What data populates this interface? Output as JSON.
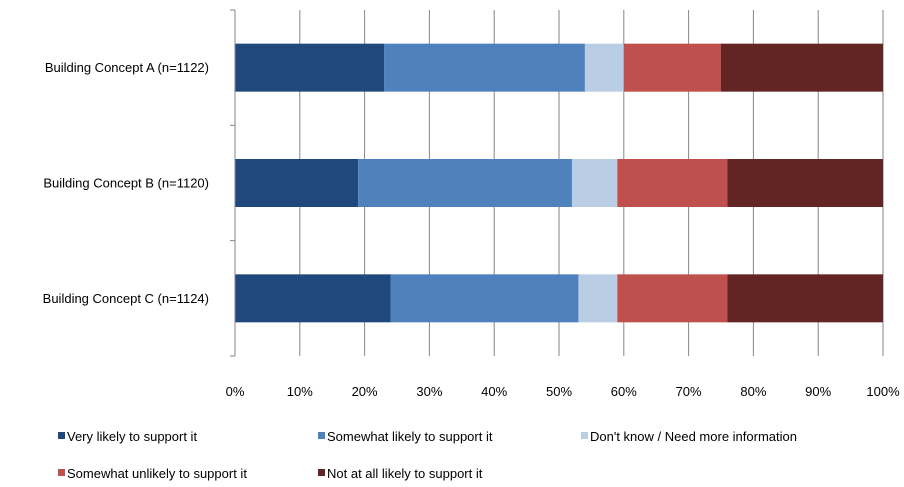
{
  "chart_data": {
    "type": "bar",
    "orientation": "horizontal",
    "stacked": "percent",
    "categories": [
      "Building Concept  A (n=1122)",
      "Building Concept  B (n=1120)",
      "Building Concept  C (n=1124)"
    ],
    "series": [
      {
        "name": "Very likely to support it",
        "color": "#1f497d",
        "values": [
          23,
          19,
          24
        ]
      },
      {
        "name": "Somewhat likely to support it",
        "color": "#4f81bd",
        "values": [
          31,
          33,
          29
        ]
      },
      {
        "name": "Don't know / Need more information",
        "color": "#b9cde5",
        "values": [
          6,
          7,
          6
        ]
      },
      {
        "name": "Somewhat unlikely to support it",
        "color": "#c0504d",
        "values": [
          15,
          17,
          17
        ]
      },
      {
        "name": "Not at all likely to support it",
        "color": "#632523",
        "values": [
          25,
          24,
          24
        ]
      }
    ],
    "xlim": [
      0,
      100
    ],
    "x_ticks": [
      "0%",
      "10%",
      "20%",
      "30%",
      "40%",
      "50%",
      "60%",
      "70%",
      "80%",
      "90%",
      "100%"
    ],
    "grid": "vertical",
    "legend": "bottom"
  }
}
